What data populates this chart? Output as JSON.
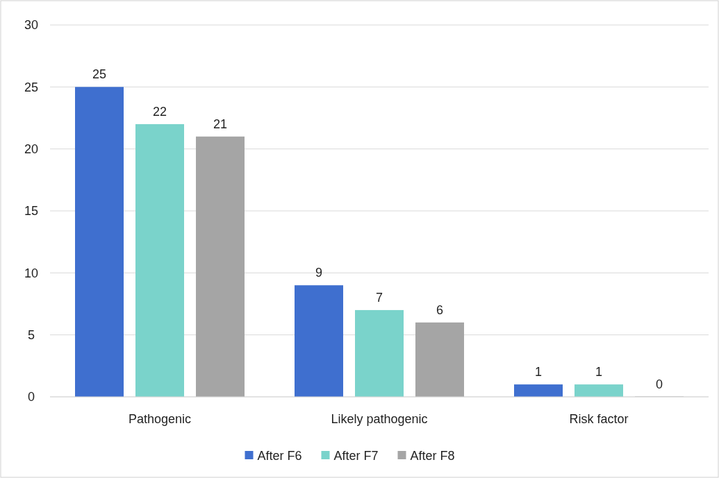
{
  "chart_data": {
    "type": "bar",
    "categories": [
      "Pathogenic",
      "Likely pathogenic",
      "Risk factor"
    ],
    "series": [
      {
        "name": "After F6",
        "color": "#3f6fcf",
        "values": [
          25,
          9,
          1
        ]
      },
      {
        "name": "After F7",
        "color": "#7ad3cb",
        "values": [
          22,
          7,
          1
        ]
      },
      {
        "name": "After F8",
        "color": "#a5a5a5",
        "values": [
          21,
          6,
          0
        ]
      }
    ],
    "ylim": [
      0,
      30
    ],
    "yticks": [
      0,
      5,
      10,
      15,
      20,
      25,
      30
    ],
    "grid": "y",
    "legend": "bottom",
    "data_labels": true
  }
}
